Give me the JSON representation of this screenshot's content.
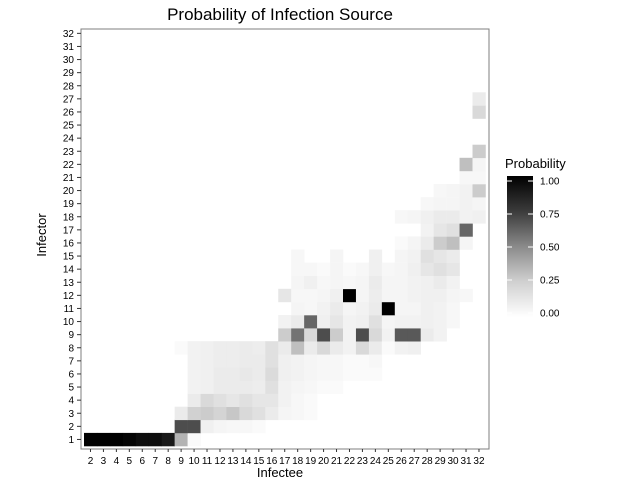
{
  "chart_data": {
    "type": "heatmap",
    "title": "Probability of Infection Source",
    "xlabel": "Infectee",
    "ylabel": "Infector",
    "x_categories": [
      "2",
      "3",
      "4",
      "5",
      "6",
      "7",
      "8",
      "9",
      "10",
      "11",
      "12",
      "13",
      "14",
      "15",
      "16",
      "17",
      "18",
      "19",
      "20",
      "21",
      "22",
      "23",
      "24",
      "25",
      "26",
      "27",
      "28",
      "29",
      "30",
      "31",
      "32"
    ],
    "y_categories": [
      "1",
      "2",
      "3",
      "4",
      "5",
      "6",
      "7",
      "8",
      "9",
      "10",
      "11",
      "12",
      "13",
      "14",
      "15",
      "16",
      "17",
      "18",
      "19",
      "20",
      "21",
      "22",
      "23",
      "24",
      "25",
      "26",
      "27",
      "28",
      "29",
      "30",
      "31",
      "32"
    ],
    "value_range": [
      0,
      1
    ],
    "cells": [
      [
        2,
        1,
        1.0
      ],
      [
        3,
        1,
        1.0
      ],
      [
        4,
        1,
        1.0
      ],
      [
        5,
        1,
        0.98
      ],
      [
        6,
        1,
        0.95
      ],
      [
        7,
        1,
        0.95
      ],
      [
        8,
        1,
        0.9
      ],
      [
        9,
        1,
        0.3
      ],
      [
        10,
        1,
        0.02
      ],
      [
        9,
        2,
        0.7
      ],
      [
        10,
        2,
        0.7
      ],
      [
        11,
        2,
        0.06
      ],
      [
        12,
        2,
        0.04
      ],
      [
        13,
        2,
        0.03
      ],
      [
        14,
        2,
        0.03
      ],
      [
        15,
        2,
        0.02
      ],
      [
        9,
        3,
        0.08
      ],
      [
        10,
        3,
        0.18
      ],
      [
        11,
        3,
        0.2
      ],
      [
        12,
        3,
        0.17
      ],
      [
        13,
        3,
        0.22
      ],
      [
        14,
        3,
        0.15
      ],
      [
        15,
        3,
        0.12
      ],
      [
        16,
        3,
        0.08
      ],
      [
        17,
        3,
        0.04
      ],
      [
        18,
        3,
        0.03
      ],
      [
        19,
        3,
        0.02
      ],
      [
        10,
        4,
        0.08
      ],
      [
        11,
        4,
        0.15
      ],
      [
        12,
        4,
        0.12
      ],
      [
        13,
        4,
        0.1
      ],
      [
        14,
        4,
        0.12
      ],
      [
        15,
        4,
        0.1
      ],
      [
        16,
        4,
        0.1
      ],
      [
        17,
        4,
        0.05
      ],
      [
        18,
        4,
        0.03
      ],
      [
        19,
        4,
        0.02
      ],
      [
        10,
        5,
        0.05
      ],
      [
        11,
        5,
        0.06
      ],
      [
        12,
        5,
        0.08
      ],
      [
        13,
        5,
        0.08
      ],
      [
        14,
        5,
        0.08
      ],
      [
        15,
        5,
        0.07
      ],
      [
        16,
        5,
        0.12
      ],
      [
        17,
        5,
        0.05
      ],
      [
        18,
        5,
        0.04
      ],
      [
        19,
        5,
        0.03
      ],
      [
        20,
        5,
        0.02
      ],
      [
        21,
        5,
        0.02
      ],
      [
        10,
        6,
        0.05
      ],
      [
        11,
        6,
        0.06
      ],
      [
        12,
        6,
        0.08
      ],
      [
        13,
        6,
        0.08
      ],
      [
        14,
        6,
        0.09
      ],
      [
        15,
        6,
        0.08
      ],
      [
        16,
        6,
        0.14
      ],
      [
        17,
        6,
        0.06
      ],
      [
        18,
        6,
        0.05
      ],
      [
        19,
        6,
        0.04
      ],
      [
        20,
        6,
        0.03
      ],
      [
        21,
        6,
        0.03
      ],
      [
        22,
        6,
        0.02
      ],
      [
        23,
        6,
        0.02
      ],
      [
        24,
        6,
        0.02
      ],
      [
        10,
        7,
        0.05
      ],
      [
        11,
        7,
        0.06
      ],
      [
        12,
        7,
        0.07
      ],
      [
        13,
        7,
        0.07
      ],
      [
        14,
        7,
        0.08
      ],
      [
        15,
        7,
        0.08
      ],
      [
        16,
        7,
        0.12
      ],
      [
        17,
        7,
        0.06
      ],
      [
        18,
        7,
        0.05
      ],
      [
        19,
        7,
        0.04
      ],
      [
        20,
        7,
        0.03
      ],
      [
        21,
        7,
        0.03
      ],
      [
        22,
        7,
        0.02
      ],
      [
        23,
        7,
        0.02
      ],
      [
        24,
        7,
        0.03
      ],
      [
        9,
        8,
        0.02
      ],
      [
        10,
        8,
        0.05
      ],
      [
        11,
        8,
        0.06
      ],
      [
        12,
        8,
        0.07
      ],
      [
        13,
        8,
        0.07
      ],
      [
        14,
        8,
        0.08
      ],
      [
        15,
        8,
        0.07
      ],
      [
        16,
        8,
        0.12
      ],
      [
        17,
        8,
        0.08
      ],
      [
        18,
        8,
        0.25
      ],
      [
        19,
        8,
        0.08
      ],
      [
        20,
        8,
        0.15
      ],
      [
        21,
        8,
        0.08
      ],
      [
        22,
        8,
        0.05
      ],
      [
        23,
        8,
        0.15
      ],
      [
        24,
        8,
        0.08
      ],
      [
        25,
        8,
        0.02
      ],
      [
        26,
        8,
        0.05
      ],
      [
        27,
        8,
        0.06
      ],
      [
        17,
        9,
        0.2
      ],
      [
        18,
        9,
        0.55
      ],
      [
        19,
        9,
        0.15
      ],
      [
        20,
        9,
        0.7
      ],
      [
        21,
        9,
        0.2
      ],
      [
        22,
        9,
        0.05
      ],
      [
        23,
        9,
        0.7
      ],
      [
        24,
        9,
        0.15
      ],
      [
        25,
        9,
        0.05
      ],
      [
        26,
        9,
        0.65
      ],
      [
        27,
        9,
        0.65
      ],
      [
        28,
        9,
        0.08
      ],
      [
        29,
        9,
        0.05
      ],
      [
        17,
        10,
        0.05
      ],
      [
        18,
        10,
        0.08
      ],
      [
        19,
        10,
        0.6
      ],
      [
        20,
        10,
        0.06
      ],
      [
        21,
        10,
        0.1
      ],
      [
        22,
        10,
        0.05
      ],
      [
        23,
        10,
        0.06
      ],
      [
        24,
        10,
        0.12
      ],
      [
        25,
        10,
        0.04
      ],
      [
        26,
        10,
        0.05
      ],
      [
        27,
        10,
        0.05
      ],
      [
        28,
        10,
        0.06
      ],
      [
        29,
        10,
        0.05
      ],
      [
        30,
        10,
        0.03
      ],
      [
        18,
        11,
        0.04
      ],
      [
        19,
        11,
        0.03
      ],
      [
        20,
        11,
        0.05
      ],
      [
        21,
        11,
        0.08
      ],
      [
        22,
        11,
        0.04
      ],
      [
        23,
        11,
        0.05
      ],
      [
        24,
        11,
        0.08
      ],
      [
        25,
        11,
        1.0
      ],
      [
        26,
        11,
        0.04
      ],
      [
        27,
        11,
        0.04
      ],
      [
        28,
        11,
        0.06
      ],
      [
        29,
        11,
        0.05
      ],
      [
        30,
        11,
        0.03
      ],
      [
        17,
        12,
        0.1
      ],
      [
        18,
        12,
        0.03
      ],
      [
        19,
        12,
        0.03
      ],
      [
        20,
        12,
        0.04
      ],
      [
        21,
        12,
        0.06
      ],
      [
        22,
        12,
        1.0
      ],
      [
        23,
        12,
        0.04
      ],
      [
        24,
        12,
        0.07
      ],
      [
        25,
        12,
        0.04
      ],
      [
        26,
        12,
        0.04
      ],
      [
        27,
        12,
        0.05
      ],
      [
        28,
        12,
        0.06
      ],
      [
        29,
        12,
        0.06
      ],
      [
        30,
        12,
        0.04
      ],
      [
        31,
        12,
        0.03
      ],
      [
        18,
        13,
        0.04
      ],
      [
        19,
        13,
        0.06
      ],
      [
        20,
        13,
        0.03
      ],
      [
        21,
        13,
        0.04
      ],
      [
        22,
        13,
        0.03
      ],
      [
        23,
        13,
        0.04
      ],
      [
        24,
        13,
        0.08
      ],
      [
        25,
        13,
        0.04
      ],
      [
        26,
        13,
        0.04
      ],
      [
        27,
        13,
        0.05
      ],
      [
        28,
        13,
        0.06
      ],
      [
        29,
        13,
        0.08
      ],
      [
        30,
        13,
        0.05
      ],
      [
        18,
        14,
        0.03
      ],
      [
        19,
        14,
        0.03
      ],
      [
        20,
        14,
        0.02
      ],
      [
        21,
        14,
        0.04
      ],
      [
        22,
        14,
        0.02
      ],
      [
        23,
        14,
        0.03
      ],
      [
        24,
        14,
        0.06
      ],
      [
        25,
        14,
        0.03
      ],
      [
        26,
        14,
        0.04
      ],
      [
        27,
        14,
        0.06
      ],
      [
        28,
        14,
        0.1
      ],
      [
        29,
        14,
        0.12
      ],
      [
        30,
        14,
        0.1
      ],
      [
        18,
        15,
        0.03
      ],
      [
        21,
        15,
        0.04
      ],
      [
        24,
        15,
        0.06
      ],
      [
        26,
        15,
        0.04
      ],
      [
        27,
        15,
        0.05
      ],
      [
        28,
        15,
        0.12
      ],
      [
        29,
        15,
        0.1
      ],
      [
        30,
        15,
        0.08
      ],
      [
        26,
        16,
        0.02
      ],
      [
        27,
        16,
        0.04
      ],
      [
        28,
        16,
        0.08
      ],
      [
        29,
        16,
        0.2
      ],
      [
        30,
        16,
        0.25
      ],
      [
        31,
        16,
        0.04
      ],
      [
        28,
        17,
        0.05
      ],
      [
        29,
        17,
        0.1
      ],
      [
        30,
        17,
        0.12
      ],
      [
        31,
        17,
        0.6
      ],
      [
        26,
        18,
        0.03
      ],
      [
        27,
        18,
        0.04
      ],
      [
        28,
        18,
        0.06
      ],
      [
        29,
        18,
        0.08
      ],
      [
        30,
        18,
        0.08
      ],
      [
        31,
        18,
        0.05
      ],
      [
        32,
        18,
        0.06
      ],
      [
        28,
        19,
        0.03
      ],
      [
        29,
        19,
        0.04
      ],
      [
        30,
        19,
        0.04
      ],
      [
        31,
        19,
        0.05
      ],
      [
        32,
        19,
        0.04
      ],
      [
        29,
        20,
        0.03
      ],
      [
        30,
        20,
        0.04
      ],
      [
        31,
        20,
        0.05
      ],
      [
        32,
        20,
        0.2
      ],
      [
        31,
        21,
        0.03
      ],
      [
        32,
        21,
        0.03
      ],
      [
        31,
        22,
        0.25
      ],
      [
        32,
        22,
        0.04
      ],
      [
        32,
        23,
        0.2
      ],
      [
        32,
        26,
        0.15
      ],
      [
        32,
        27,
        0.08
      ]
    ],
    "legend": {
      "title": "Probability",
      "labels": [
        "1.00",
        "0.75",
        "0.50",
        "0.25",
        "0.00"
      ],
      "placement": "right"
    },
    "grid": false
  }
}
